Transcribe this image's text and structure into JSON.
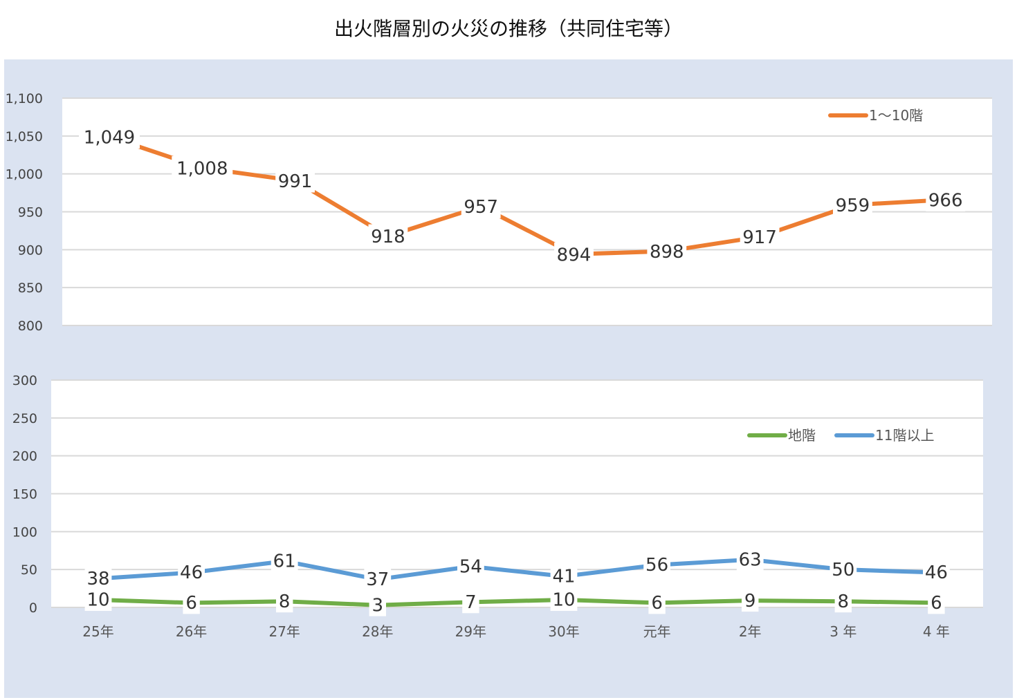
{
  "title": "出火階層別の火災の推移（共同住宅等）",
  "colors": {
    "orange": "#ed7d31",
    "blue": "#5b9bd5",
    "green": "#70ad47",
    "panel": "#dbe3f1"
  },
  "chart_data": [
    {
      "type": "line",
      "categories": [
        "25年",
        "26年",
        "27年",
        "28年",
        "29年",
        "30年",
        "元年",
        "2年",
        "3 年",
        "4 年"
      ],
      "series": [
        {
          "name": "1～10階",
          "color": "#ed7d31",
          "values": [
            1049,
            1008,
            991,
            918,
            957,
            894,
            898,
            917,
            959,
            966
          ]
        }
      ],
      "ylim": [
        800,
        1100
      ],
      "yticks": [
        800,
        850,
        900,
        950,
        1000,
        1050,
        1100
      ],
      "ytick_labels": [
        "800",
        "850",
        "900",
        "950",
        "1,000",
        "1,050",
        "1,100"
      ],
      "data_labels": [
        "1,049",
        "1,008",
        "991",
        "918",
        "957",
        "894",
        "898",
        "917",
        "959",
        "966"
      ],
      "grid": true,
      "legend": "top-right"
    },
    {
      "type": "line",
      "categories": [
        "25年",
        "26年",
        "27年",
        "28年",
        "29年",
        "30年",
        "元年",
        "2年",
        "3 年",
        "4 年"
      ],
      "series": [
        {
          "name": "地階",
          "color": "#70ad47",
          "values": [
            10,
            6,
            8,
            3,
            7,
            10,
            6,
            9,
            8,
            6
          ]
        },
        {
          "name": "11階以上",
          "color": "#5b9bd5",
          "values": [
            38,
            46,
            61,
            37,
            54,
            41,
            56,
            63,
            50,
            46
          ]
        }
      ],
      "ylim": [
        0,
        300
      ],
      "yticks": [
        0,
        50,
        100,
        150,
        200,
        250,
        300
      ],
      "ytick_labels": [
        "0",
        "50",
        "100",
        "150",
        "200",
        "250",
        "300"
      ],
      "grid": true,
      "legend": "top-right"
    }
  ]
}
